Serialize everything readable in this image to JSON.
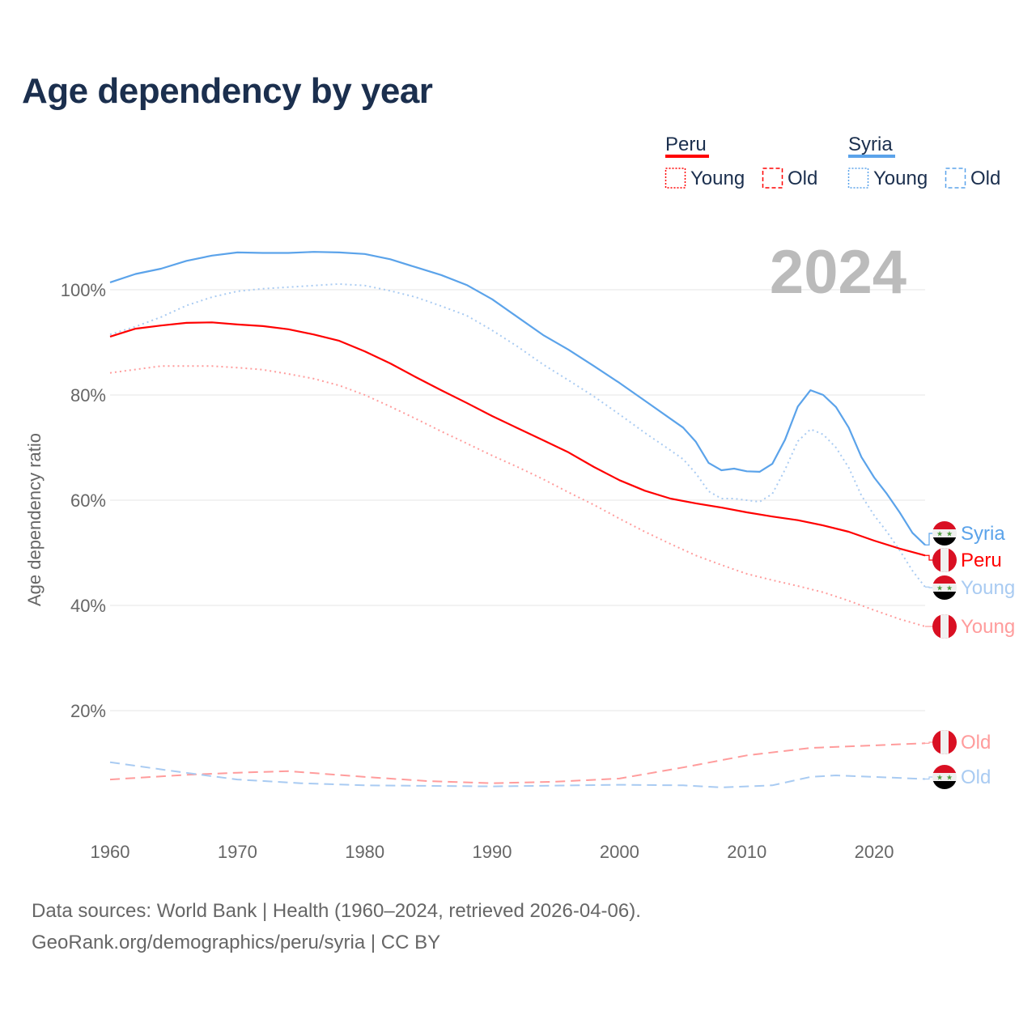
{
  "title": "Age dependency by year",
  "footer": {
    "line1": "Data sources: World Bank | Health (1960–2024, retrieved 2026-04-06).",
    "line2": "GeoRank.org/demographics/peru/syria | CC BY"
  },
  "legend": {
    "groups": [
      {
        "country": "Peru",
        "color": "#ff0000",
        "young": "Young",
        "old": "Old"
      },
      {
        "country": "Syria",
        "color": "#5ba3ea",
        "young": "Young",
        "old": "Old"
      }
    ]
  },
  "chart_data": {
    "type": "line",
    "title": "Age dependency by year",
    "year_watermark": "2024",
    "xlabel": "",
    "ylabel": "Age dependency ratio",
    "xlim": [
      1960,
      2024
    ],
    "ylim": [
      0,
      110
    ],
    "x_ticks": [
      "1960",
      "1970",
      "1980",
      "1990",
      "2000",
      "2010",
      "2020"
    ],
    "y_ticks": [
      "20%",
      "40%",
      "60%",
      "80%",
      "100%"
    ],
    "grid": true,
    "series": [
      {
        "name": "Syria",
        "kind": "total",
        "label": "Syria",
        "color": "#5ba3ea",
        "dash": "solid",
        "flag": "syria",
        "x": [
          1960,
          1962,
          1964,
          1966,
          1968,
          1970,
          1972,
          1974,
          1976,
          1978,
          1980,
          1982,
          1984,
          1986,
          1988,
          1990,
          1992,
          1994,
          1996,
          1998,
          2000,
          2002,
          2004,
          2005,
          2006,
          2007,
          2008,
          2009,
          2010,
          2011,
          2012,
          2013,
          2014,
          2015,
          2016,
          2017,
          2018,
          2019,
          2020,
          2021,
          2022,
          2023,
          2024
        ],
        "y": [
          101.4,
          103,
          104,
          105.5,
          106.5,
          107.1,
          107,
          107,
          107.2,
          107.1,
          106.8,
          105.8,
          104.3,
          102.8,
          100.9,
          98.2,
          94.8,
          91.4,
          88.6,
          85.5,
          82.3,
          78.9,
          75.5,
          73.8,
          71.1,
          67.1,
          65.7,
          66,
          65.5,
          65.4,
          66.9,
          71.5,
          77.8,
          80.9,
          80,
          77.7,
          73.8,
          68.2,
          64.3,
          61.2,
          57.7,
          53.8,
          51.5
        ]
      },
      {
        "name": "Peru",
        "kind": "total",
        "label": "Peru",
        "color": "#ff0000",
        "dash": "solid",
        "flag": "peru",
        "x": [
          1960,
          1962,
          1964,
          1966,
          1968,
          1970,
          1972,
          1974,
          1976,
          1978,
          1980,
          1982,
          1984,
          1986,
          1988,
          1990,
          1992,
          1994,
          1996,
          1998,
          2000,
          2002,
          2004,
          2006,
          2008,
          2010,
          2012,
          2014,
          2016,
          2018,
          2020,
          2022,
          2024
        ],
        "y": [
          91.1,
          92.6,
          93.2,
          93.7,
          93.8,
          93.4,
          93.1,
          92.5,
          91.5,
          90.3,
          88.3,
          86,
          83.4,
          80.9,
          78.5,
          76,
          73.7,
          71.4,
          69.1,
          66.3,
          63.8,
          61.8,
          60.3,
          59.4,
          58.6,
          57.7,
          56.9,
          56.2,
          55.2,
          54,
          52.3,
          50.8,
          49.5
        ]
      },
      {
        "name": "Syria Young",
        "kind": "young",
        "label": "Young",
        "color": "#a9cbf2",
        "dash": "dotted",
        "flag": "syria",
        "x": [
          1960,
          1962,
          1964,
          1966,
          1968,
          1970,
          1972,
          1974,
          1976,
          1978,
          1980,
          1982,
          1984,
          1986,
          1988,
          1990,
          1992,
          1994,
          1996,
          1998,
          2000,
          2002,
          2004,
          2005,
          2006,
          2007,
          2008,
          2009,
          2010,
          2011,
          2012,
          2013,
          2014,
          2015,
          2016,
          2017,
          2018,
          2019,
          2020,
          2021,
          2022,
          2023,
          2024
        ],
        "y": [
          91.5,
          93,
          94.8,
          97,
          98.6,
          99.7,
          100.2,
          100.5,
          100.8,
          101.1,
          100.8,
          99.8,
          98.6,
          96.9,
          95.1,
          92.3,
          89.2,
          85.8,
          82.8,
          79.7,
          76.3,
          72.8,
          69.5,
          67.8,
          65.1,
          61.7,
          60.3,
          60.3,
          60,
          59.7,
          61.2,
          65.8,
          71.2,
          73.5,
          72.5,
          70,
          66.2,
          60.9,
          57.1,
          54,
          50.5,
          46.6,
          43.5
        ]
      },
      {
        "name": "Peru Young",
        "kind": "young",
        "label": "Young",
        "color": "#ff9c9c",
        "dash": "dotted",
        "flag": "peru",
        "x": [
          1960,
          1964,
          1968,
          1970,
          1972,
          1974,
          1976,
          1978,
          1980,
          1982,
          1984,
          1986,
          1988,
          1990,
          1992,
          1994,
          1996,
          1998,
          2000,
          2002,
          2004,
          2006,
          2008,
          2010,
          2012,
          2014,
          2016,
          2018,
          2020,
          2022,
          2024
        ],
        "y": [
          84.2,
          85.5,
          85.5,
          85.2,
          84.8,
          84,
          83.1,
          81.8,
          80,
          77.8,
          75.5,
          73.1,
          70.8,
          68.5,
          66.3,
          64,
          61.5,
          59.1,
          56.5,
          54,
          51.7,
          49.5,
          47.7,
          46,
          44.8,
          43.7,
          42.5,
          40.9,
          39.1,
          37.4,
          36
        ]
      },
      {
        "name": "Peru Old",
        "kind": "old",
        "label": "Old",
        "color": "#ff9c9c",
        "dash": "dashed",
        "flag": "peru",
        "x": [
          1960,
          1966,
          1970,
          1974,
          1980,
          1985,
          1990,
          1995,
          2000,
          2005,
          2010,
          2015,
          2020,
          2024
        ],
        "y": [
          6.9,
          7.8,
          8.2,
          8.5,
          7.4,
          6.6,
          6.2,
          6.5,
          7.1,
          9.2,
          11.5,
          12.9,
          13.4,
          13.8
        ]
      },
      {
        "name": "Syria Old",
        "kind": "old",
        "label": "Old",
        "color": "#a9cbf2",
        "dash": "dashed",
        "flag": "syria",
        "x": [
          1960,
          1965,
          1970,
          1975,
          1980,
          1990,
          2000,
          2005,
          2008,
          2012,
          2015,
          2017,
          2020,
          2024
        ],
        "y": [
          10.2,
          8.5,
          6.9,
          6.2,
          5.8,
          5.6,
          5.9,
          5.8,
          5.4,
          5.8,
          7.4,
          7.7,
          7.4,
          7.0
        ]
      }
    ]
  }
}
